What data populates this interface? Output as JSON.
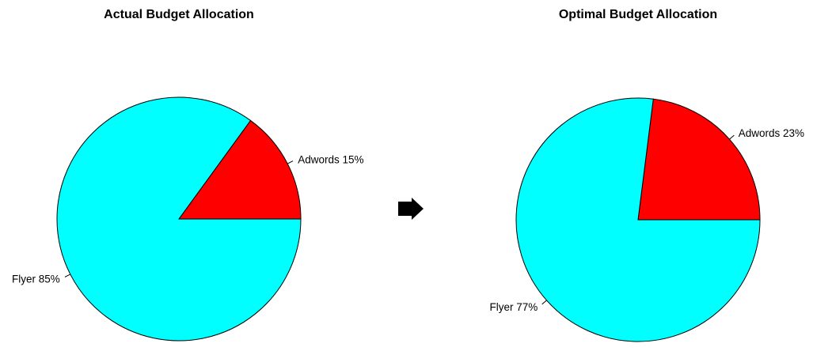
{
  "chart_data": [
    {
      "type": "pie",
      "title": "Actual Budget Allocation",
      "slices": [
        {
          "label": "Adwords 15%",
          "value": 15,
          "color": "#ff0000"
        },
        {
          "label": "Flyer 85%",
          "value": 85,
          "color": "#00ffff"
        }
      ]
    },
    {
      "type": "pie",
      "title": "Optimal Budget Allocation",
      "slices": [
        {
          "label": "Adwords 23%",
          "value": 23,
          "color": "#ff0000"
        },
        {
          "label": "Flyer 77%",
          "value": 77,
          "color": "#00ffff"
        }
      ]
    }
  ],
  "arrow": {
    "icon": "right-arrow-icon",
    "color": "#000000"
  }
}
